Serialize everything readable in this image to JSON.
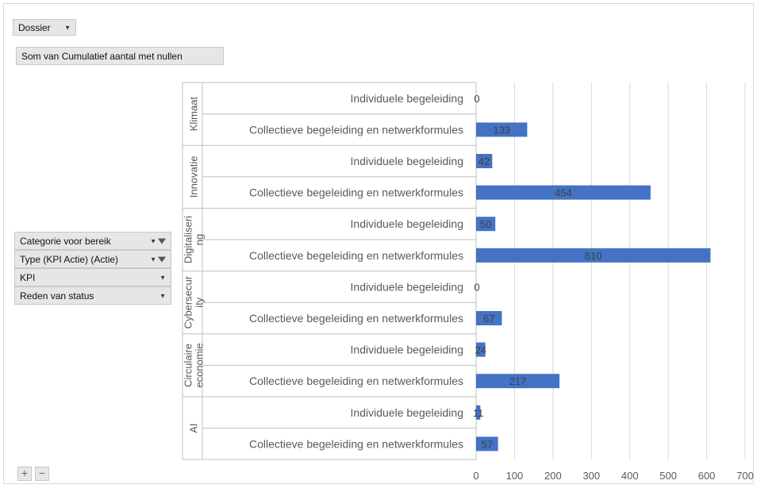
{
  "field_buttons": {
    "filter": "Dossier",
    "values": "Som van Cumulatief aantal met nullen",
    "rows": [
      {
        "label": "Categorie voor bereik",
        "funnel": true
      },
      {
        "label": "Type (KPI Actie) (Actie)",
        "funnel": true
      },
      {
        "label": "KPI",
        "funnel": false
      },
      {
        "label": "Reden van status",
        "funnel": false
      }
    ]
  },
  "zoom_buttons": {
    "plus": "+",
    "minus": "−"
  },
  "chart_data": {
    "type": "bar",
    "orientation": "horizontal",
    "bar_color": "#4472c4",
    "xlim": [
      0,
      700
    ],
    "xticks": [
      0,
      100,
      200,
      300,
      400,
      500,
      600,
      700
    ],
    "grid": true,
    "groups": [
      {
        "name": "Klimaat",
        "name_lines": [
          "Klimaat"
        ],
        "items": [
          {
            "label": "Individuele begeleiding",
            "value": 0
          },
          {
            "label": "Collectieve begeleiding en netwerkformules",
            "value": 133
          }
        ]
      },
      {
        "name": "Innovatie",
        "name_lines": [
          "Innovatie"
        ],
        "items": [
          {
            "label": "Individuele begeleiding",
            "value": 42
          },
          {
            "label": "Collectieve begeleiding en netwerkformules",
            "value": 454
          }
        ]
      },
      {
        "name": "Digitalisering",
        "name_lines": [
          "Digitaliseri",
          "ng"
        ],
        "items": [
          {
            "label": "Individuele begeleiding",
            "value": 50
          },
          {
            "label": "Collectieve begeleiding en netwerkformules",
            "value": 610
          }
        ]
      },
      {
        "name": "Cybersecurity",
        "name_lines": [
          "Cybersecur",
          "ity"
        ],
        "items": [
          {
            "label": "Individuele begeleiding",
            "value": 0
          },
          {
            "label": "Collectieve begeleiding en netwerkformules",
            "value": 67
          }
        ]
      },
      {
        "name": "Circulaire economie",
        "name_lines": [
          "Circulaire",
          "economie"
        ],
        "items": [
          {
            "label": "Individuele begeleiding",
            "value": 24
          },
          {
            "label": "Collectieve begeleiding en netwerkformules",
            "value": 217
          }
        ]
      },
      {
        "name": "AI",
        "name_lines": [
          "AI"
        ],
        "items": [
          {
            "label": "Individuele begeleiding",
            "value": 11
          },
          {
            "label": "Collectieve begeleiding en netwerkformules",
            "value": 57
          }
        ]
      }
    ]
  }
}
